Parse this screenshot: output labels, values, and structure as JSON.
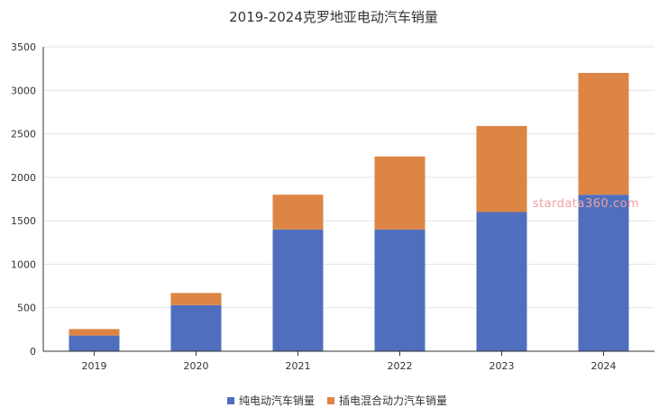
{
  "chart_data": {
    "type": "bar",
    "stacked": true,
    "title": "2019-2024克罗地亚电动汽车销量",
    "categories": [
      "2019",
      "2020",
      "2021",
      "2022",
      "2023",
      "2024"
    ],
    "series": [
      {
        "name": "纯电动汽车销量",
        "color": "#4f6fbe",
        "values": [
          180,
          530,
          1400,
          1400,
          1600,
          1800
        ]
      },
      {
        "name": "插电混合动力汽车销量",
        "color": "#dc8545",
        "values": [
          75,
          140,
          400,
          840,
          990,
          1400
        ]
      }
    ],
    "ylim": [
      0,
      3500
    ],
    "yticks": [
      0,
      500,
      1000,
      1500,
      2000,
      2500,
      3000,
      3500
    ],
    "grid": true,
    "legend_position": "bottom"
  },
  "watermark": "stardata360.com"
}
